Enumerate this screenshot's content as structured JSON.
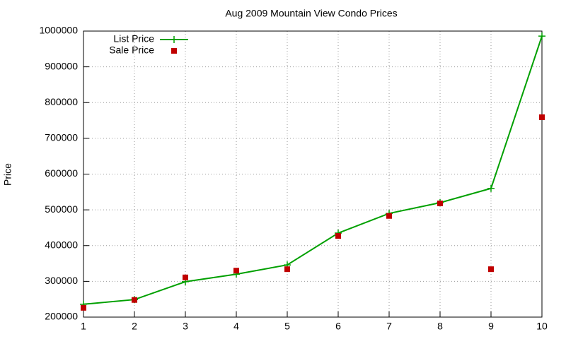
{
  "chart_data": {
    "type": "line",
    "title": "Aug 2009 Mountain View Condo Prices",
    "y_label": "Price",
    "x": [
      1,
      2,
      3,
      4,
      5,
      6,
      7,
      8,
      9,
      10
    ],
    "series": [
      {
        "name": "List Price",
        "color": "#00a000",
        "style": "linespoints",
        "values": [
          236000,
          249000,
          299000,
          320000,
          346000,
          435000,
          490000,
          520000,
          560000,
          986000
        ]
      },
      {
        "name": "Sale Price",
        "color": "#c00000",
        "style": "points",
        "values": [
          226000,
          248000,
          311000,
          330000,
          334000,
          427000,
          483000,
          518000,
          334000,
          759000
        ]
      }
    ],
    "xlim": [
      1,
      10
    ],
    "xticks": [
      1,
      2,
      3,
      4,
      5,
      6,
      7,
      8,
      9,
      10
    ],
    "ylim": [
      200000,
      1000000
    ],
    "yticks": [
      200000,
      300000,
      400000,
      500000,
      600000,
      700000,
      800000,
      900000,
      1000000
    ],
    "grid": true,
    "legend": "top-left"
  }
}
